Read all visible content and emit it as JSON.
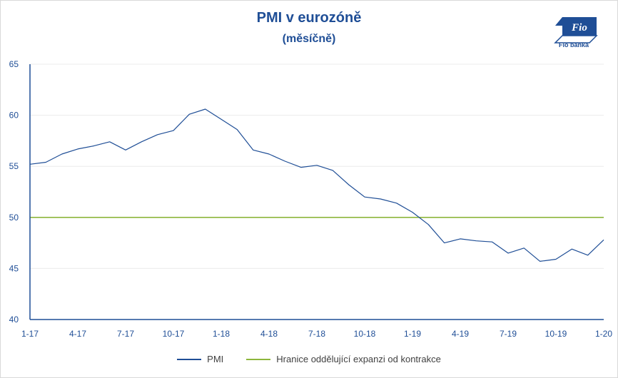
{
  "logo": {
    "brand": "Fio banka",
    "mark": "Fio",
    "color": "#1f4e96"
  },
  "chart_data": {
    "type": "line",
    "title": "PMI v eurozóně",
    "subtitle": "(měsíčně)",
    "xlabel": "",
    "ylabel": "",
    "ylim": [
      40,
      65
    ],
    "yticks": [
      40,
      45,
      50,
      55,
      60,
      65
    ],
    "grid": true,
    "legend_position": "bottom",
    "x": [
      "1-17",
      "2-17",
      "3-17",
      "4-17",
      "5-17",
      "6-17",
      "7-17",
      "8-17",
      "9-17",
      "10-17",
      "11-17",
      "12-17",
      "1-18",
      "2-18",
      "3-18",
      "4-18",
      "5-18",
      "6-18",
      "7-18",
      "8-18",
      "9-18",
      "10-18",
      "11-18",
      "12-18",
      "1-19",
      "2-19",
      "3-19",
      "4-19",
      "5-19",
      "6-19",
      "7-19",
      "8-19",
      "9-19",
      "10-19",
      "11-19",
      "12-19",
      "1-20"
    ],
    "xtick_labels": [
      "1-17",
      "4-17",
      "7-17",
      "10-17",
      "1-18",
      "4-18",
      "7-18",
      "10-18",
      "1-19",
      "4-19",
      "7-19",
      "10-19",
      "1-20"
    ],
    "series": [
      {
        "name": "PMI",
        "color": "#1f4e96",
        "values": [
          55.2,
          55.4,
          56.2,
          56.7,
          57.0,
          57.4,
          56.6,
          57.4,
          58.1,
          58.5,
          60.1,
          60.6,
          59.6,
          58.6,
          56.6,
          56.2,
          55.5,
          54.9,
          55.1,
          54.6,
          53.2,
          52.0,
          51.8,
          51.4,
          50.5,
          49.3,
          47.5,
          47.9,
          47.7,
          47.6,
          46.5,
          47.0,
          45.7,
          45.9,
          46.9,
          46.3,
          47.8
        ]
      },
      {
        "name": "Hranice oddělující expanzi od kontrakce",
        "color": "#8db63c",
        "values": [
          50,
          50,
          50,
          50,
          50,
          50,
          50,
          50,
          50,
          50,
          50,
          50,
          50,
          50,
          50,
          50,
          50,
          50,
          50,
          50,
          50,
          50,
          50,
          50,
          50,
          50,
          50,
          50,
          50,
          50,
          50,
          50,
          50,
          50,
          50,
          50,
          50
        ]
      }
    ]
  }
}
